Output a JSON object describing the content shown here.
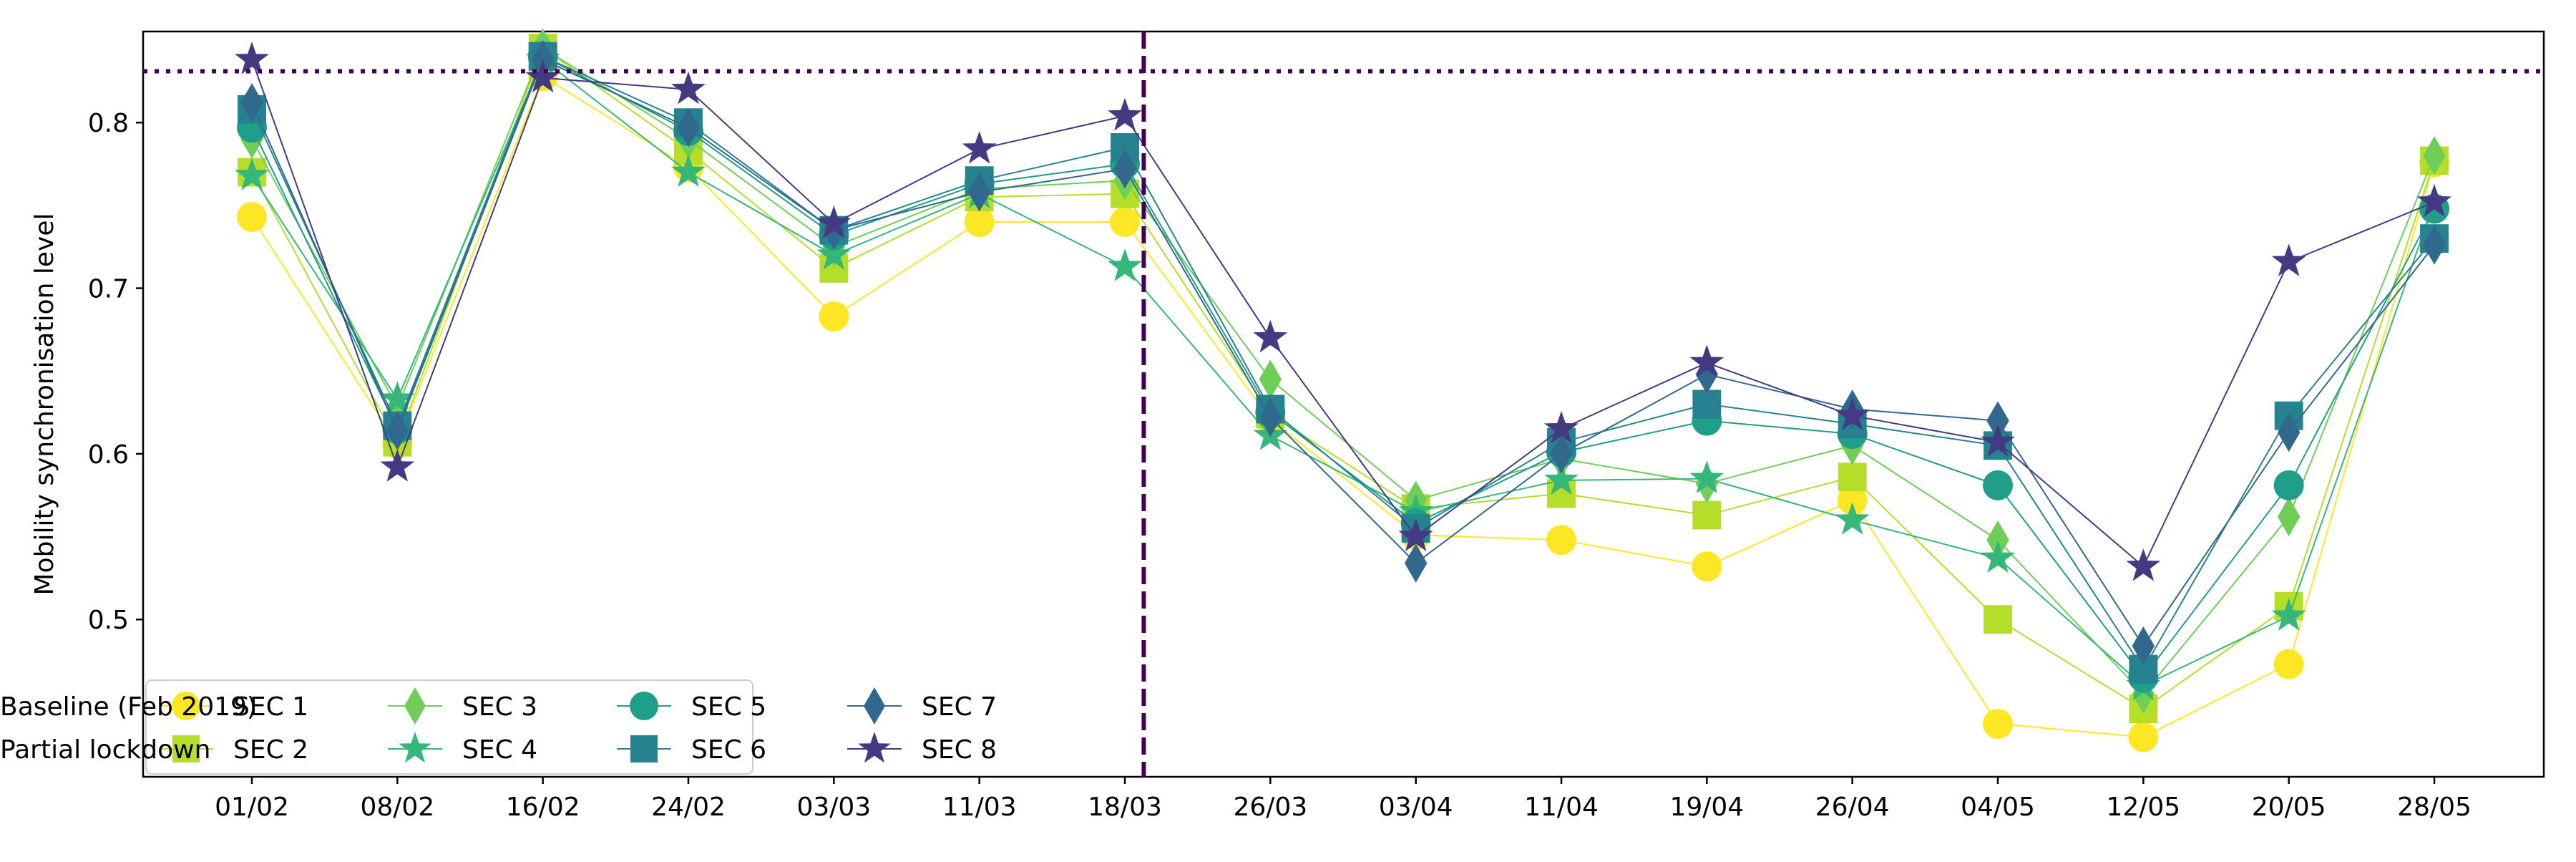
{
  "chart_data": {
    "type": "line",
    "title": "",
    "xlabel": "",
    "ylabel": "Mobility synchronisation level",
    "ylim": [
      0.405,
      0.855
    ],
    "yticks": [
      0.5,
      0.6,
      0.7,
      0.8
    ],
    "ytick_labels": [
      "0.5",
      "0.6",
      "0.7",
      "0.8"
    ],
    "categories": [
      "01/02",
      "08/02",
      "16/02",
      "24/02",
      "03/03",
      "11/03",
      "18/03",
      "26/03",
      "03/04",
      "11/04",
      "19/04",
      "26/04",
      "04/05",
      "12/05",
      "20/05",
      "28/05"
    ],
    "grid": false,
    "legend_position": "lower-left",
    "series": [
      {
        "name": "SEC 1",
        "color": "#fde725",
        "marker": "circle",
        "values": [
          0.743,
          0.606,
          0.828,
          0.773,
          0.683,
          0.74,
          0.74,
          0.621,
          0.551,
          0.548,
          0.532,
          0.572,
          0.437,
          0.429,
          0.473,
          0.776
        ]
      },
      {
        "name": "SEC 2",
        "color": "#b5de2b",
        "marker": "square",
        "values": [
          0.77,
          0.607,
          0.845,
          0.783,
          0.712,
          0.755,
          0.757,
          0.624,
          0.567,
          0.576,
          0.563,
          0.586,
          0.5,
          0.446,
          0.508,
          0.777
        ]
      },
      {
        "name": "SEC 3",
        "color": "#6ece58",
        "marker": "thin_diamond",
        "values": [
          0.79,
          0.628,
          0.845,
          0.79,
          0.725,
          0.76,
          0.765,
          0.645,
          0.572,
          0.597,
          0.582,
          0.605,
          0.548,
          0.455,
          0.562,
          0.78
        ]
      },
      {
        "name": "SEC 4",
        "color": "#35b779",
        "marker": "star",
        "values": [
          0.768,
          0.633,
          0.838,
          0.77,
          0.72,
          0.757,
          0.713,
          0.611,
          0.565,
          0.584,
          0.585,
          0.56,
          0.537,
          0.46,
          0.502,
          0.752
        ]
      },
      {
        "name": "SEC 5",
        "color": "#1f9e89",
        "marker": "circle",
        "values": [
          0.797,
          0.615,
          0.84,
          0.795,
          0.732,
          0.763,
          0.775,
          0.625,
          0.558,
          0.601,
          0.62,
          0.612,
          0.581,
          0.465,
          0.581,
          0.748
        ]
      },
      {
        "name": "SEC 6",
        "color": "#26828e",
        "marker": "square",
        "values": [
          0.808,
          0.617,
          0.84,
          0.8,
          0.735,
          0.765,
          0.785,
          0.627,
          0.555,
          0.607,
          0.63,
          0.618,
          0.605,
          0.47,
          0.623,
          0.73
        ]
      },
      {
        "name": "SEC 7",
        "color": "#31688e",
        "marker": "thin_diamond",
        "values": [
          0.812,
          0.614,
          0.838,
          0.797,
          0.735,
          0.758,
          0.772,
          0.622,
          0.534,
          0.6,
          0.648,
          0.627,
          0.62,
          0.484,
          0.613,
          0.726
        ]
      },
      {
        "name": "SEC 8",
        "color": "#443a83",
        "marker": "star",
        "values": [
          0.838,
          0.592,
          0.827,
          0.82,
          0.739,
          0.784,
          0.804,
          0.67,
          0.55,
          0.615,
          0.655,
          0.623,
          0.607,
          0.532,
          0.716,
          0.752
        ]
      }
    ],
    "reference_lines": [
      {
        "name": "Baseline (Feb 2019)",
        "orientation": "horizontal",
        "value": 0.831,
        "color": "#440154",
        "style": "dotted"
      },
      {
        "name": "Partial lockdown",
        "orientation": "vertical",
        "position_between": [
          "18/03",
          "26/03"
        ],
        "position_fraction": 0.13,
        "color": "#440154",
        "style": "dashed"
      }
    ]
  }
}
